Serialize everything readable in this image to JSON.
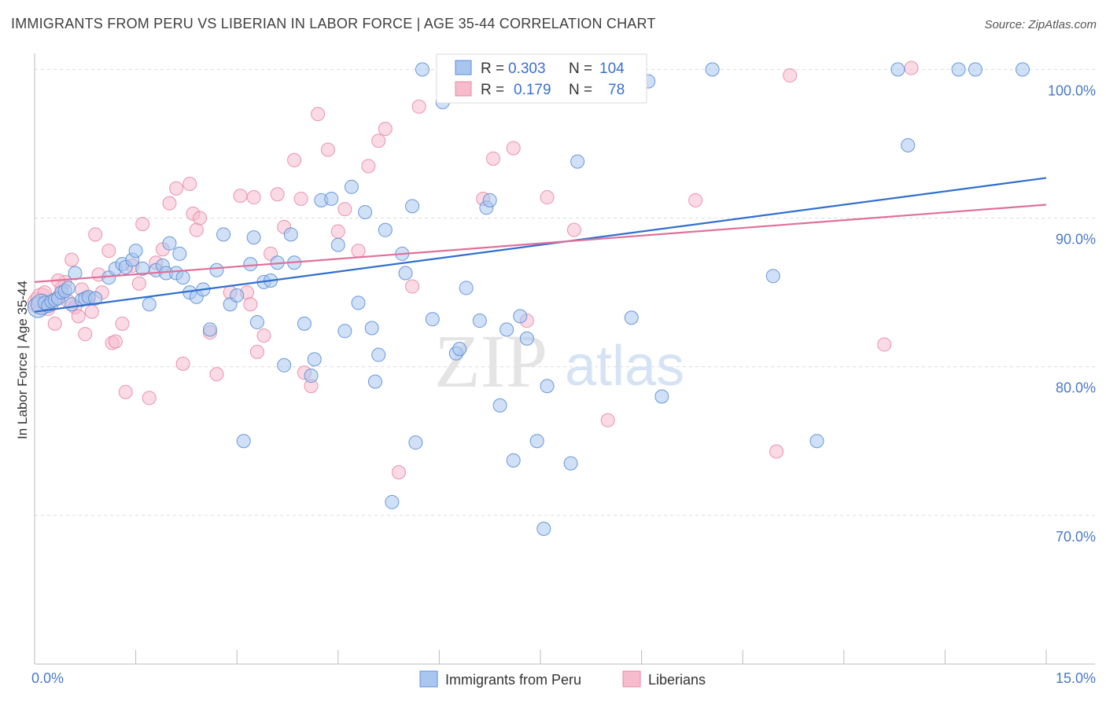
{
  "title": "IMMIGRANTS FROM PERU VS LIBERIAN IN LABOR FORCE | AGE 35-44 CORRELATION CHART",
  "source": "Source: ZipAtlas.com",
  "watermark": {
    "zip": "ZIP",
    "atlas": "atlas"
  },
  "colors": {
    "peru_fill": "#a9c6ef",
    "peru_stroke": "#5b8fd6",
    "peru_line": "#2f6fcf",
    "liberian_fill": "#f6bccd",
    "liberian_stroke": "#e889a6",
    "liberian_line": "#e0709a",
    "grid": "#dcdcdc",
    "tick_text": "#4a79c8"
  },
  "stats_box": {
    "rows": [
      {
        "r_label": "R =",
        "r_value": "0.303",
        "n_label": "N =",
        "n_value": "104"
      },
      {
        "r_label": "R =",
        "r_value": "0.179",
        "n_label": "N =",
        "n_value": "78"
      }
    ]
  },
  "chart_data": {
    "type": "scatter",
    "title": "IMMIGRANTS FROM PERU VS LIBERIAN IN LABOR FORCE | AGE 35-44 CORRELATION CHART",
    "xlabel": "",
    "ylabel": "In Labor Force | Age 35-44",
    "xlim": [
      0,
      15
    ],
    "ylim": [
      60,
      101.5
    ],
    "x_tick_labels": [
      {
        "value": 0,
        "label": "0.0%"
      },
      {
        "value": 15,
        "label": "15.0%"
      }
    ],
    "y_tick_labels": [
      {
        "value": 100,
        "label": "100.0%"
      },
      {
        "value": 90,
        "label": "90.0%"
      },
      {
        "value": 80,
        "label": "80.0%"
      },
      {
        "value": 70,
        "label": "70.0%"
      }
    ],
    "grid": "horizontal dashed",
    "legend_position": "bottom-center",
    "series": [
      {
        "name": "Immigrants from Peru",
        "r": 0.303,
        "n": 104,
        "trend": {
          "x0": 0,
          "y0": 83.7,
          "x1": 15,
          "y1": 92.7
        },
        "points": [
          [
            0.05,
            84.0
          ],
          [
            0.1,
            84.2
          ],
          [
            0.15,
            84.3
          ],
          [
            0.2,
            84.1
          ],
          [
            0.25,
            84.4
          ],
          [
            0.3,
            84.5
          ],
          [
            0.35,
            84.6
          ],
          [
            0.4,
            85.0
          ],
          [
            0.45,
            85.1
          ],
          [
            0.5,
            85.3
          ],
          [
            0.55,
            84.2
          ],
          [
            0.6,
            86.3
          ],
          [
            0.7,
            84.5
          ],
          [
            0.75,
            84.6
          ],
          [
            0.8,
            84.7
          ],
          [
            0.9,
            84.6
          ],
          [
            1.1,
            86.0
          ],
          [
            1.2,
            86.6
          ],
          [
            1.3,
            86.9
          ],
          [
            1.35,
            86.7
          ],
          [
            1.45,
            87.2
          ],
          [
            1.5,
            87.8
          ],
          [
            1.6,
            86.6
          ],
          [
            1.7,
            84.2
          ],
          [
            1.8,
            86.5
          ],
          [
            1.9,
            86.8
          ],
          [
            1.95,
            86.3
          ],
          [
            2.0,
            88.3
          ],
          [
            2.1,
            86.3
          ],
          [
            2.15,
            87.6
          ],
          [
            2.2,
            86.0
          ],
          [
            2.3,
            85.0
          ],
          [
            2.4,
            84.7
          ],
          [
            2.5,
            85.2
          ],
          [
            2.6,
            82.5
          ],
          [
            2.7,
            86.5
          ],
          [
            2.8,
            88.9
          ],
          [
            2.9,
            84.2
          ],
          [
            3.0,
            84.8
          ],
          [
            3.1,
            75.0
          ],
          [
            3.2,
            86.9
          ],
          [
            3.25,
            88.7
          ],
          [
            3.3,
            83.0
          ],
          [
            3.4,
            85.7
          ],
          [
            3.5,
            85.8
          ],
          [
            3.6,
            87.0
          ],
          [
            3.7,
            80.1
          ],
          [
            3.8,
            88.9
          ],
          [
            3.85,
            87.0
          ],
          [
            4.0,
            82.9
          ],
          [
            4.1,
            79.4
          ],
          [
            4.15,
            80.5
          ],
          [
            4.25,
            91.2
          ],
          [
            4.4,
            91.3
          ],
          [
            4.5,
            88.2
          ],
          [
            4.6,
            82.4
          ],
          [
            4.7,
            92.1
          ],
          [
            4.8,
            84.3
          ],
          [
            4.9,
            90.4
          ],
          [
            5.0,
            82.6
          ],
          [
            5.05,
            79.0
          ],
          [
            5.1,
            80.8
          ],
          [
            5.2,
            89.2
          ],
          [
            5.3,
            70.9
          ],
          [
            5.45,
            87.6
          ],
          [
            5.5,
            86.3
          ],
          [
            5.6,
            90.8
          ],
          [
            5.65,
            74.9
          ],
          [
            5.75,
            100.0
          ],
          [
            5.9,
            83.2
          ],
          [
            6.05,
            97.8
          ],
          [
            6.25,
            80.9
          ],
          [
            6.3,
            81.2
          ],
          [
            6.4,
            85.3
          ],
          [
            6.6,
            83.1
          ],
          [
            6.7,
            90.7
          ],
          [
            6.75,
            91.2
          ],
          [
            6.9,
            77.4
          ],
          [
            7.0,
            82.5
          ],
          [
            7.1,
            73.7
          ],
          [
            7.2,
            83.4
          ],
          [
            7.3,
            81.9
          ],
          [
            7.45,
            75.0
          ],
          [
            7.55,
            69.1
          ],
          [
            7.6,
            78.7
          ],
          [
            7.8,
            100.0
          ],
          [
            7.95,
            73.5
          ],
          [
            8.05,
            93.8
          ],
          [
            8.15,
            100.0
          ],
          [
            8.3,
            100.0
          ],
          [
            8.55,
            100.0
          ],
          [
            8.85,
            83.3
          ],
          [
            9.1,
            99.2
          ],
          [
            9.3,
            78.0
          ],
          [
            10.05,
            100.0
          ],
          [
            10.95,
            86.1
          ],
          [
            11.6,
            75.0
          ],
          [
            12.8,
            100.0
          ],
          [
            12.95,
            94.9
          ],
          [
            13.7,
            100.0
          ],
          [
            13.95,
            100.0
          ],
          [
            14.65,
            100.0
          ]
        ]
      },
      {
        "name": "Liberians",
        "r": 0.179,
        "n": 78,
        "trend": {
          "x0": 0,
          "y0": 85.7,
          "x1": 15,
          "y1": 90.9
        },
        "points": [
          [
            0.05,
            84.3
          ],
          [
            0.1,
            84.6
          ],
          [
            0.15,
            85.0
          ],
          [
            0.2,
            83.9
          ],
          [
            0.25,
            84.2
          ],
          [
            0.3,
            82.9
          ],
          [
            0.35,
            84.7
          ],
          [
            0.4,
            85.3
          ],
          [
            0.45,
            85.7
          ],
          [
            0.5,
            84.4
          ],
          [
            0.55,
            87.2
          ],
          [
            0.6,
            84.0
          ],
          [
            0.65,
            83.4
          ],
          [
            0.7,
            85.2
          ],
          [
            0.75,
            82.2
          ],
          [
            0.8,
            84.6
          ],
          [
            0.85,
            83.7
          ],
          [
            0.9,
            88.9
          ],
          [
            0.95,
            86.2
          ],
          [
            1.0,
            85.0
          ],
          [
            1.1,
            87.8
          ],
          [
            1.15,
            81.6
          ],
          [
            1.2,
            81.7
          ],
          [
            1.3,
            82.9
          ],
          [
            1.35,
            78.3
          ],
          [
            1.45,
            86.8
          ],
          [
            1.55,
            85.6
          ],
          [
            1.6,
            89.6
          ],
          [
            1.7,
            77.9
          ],
          [
            1.8,
            87.0
          ],
          [
            1.9,
            87.9
          ],
          [
            2.0,
            91.0
          ],
          [
            2.1,
            92.0
          ],
          [
            2.2,
            80.2
          ],
          [
            2.3,
            92.3
          ],
          [
            2.35,
            90.3
          ],
          [
            2.4,
            89.2
          ],
          [
            2.45,
            90.0
          ],
          [
            2.6,
            82.3
          ],
          [
            2.7,
            79.5
          ],
          [
            2.9,
            85.0
          ],
          [
            3.05,
            91.5
          ],
          [
            3.15,
            85.0
          ],
          [
            3.2,
            84.2
          ],
          [
            3.25,
            91.4
          ],
          [
            3.3,
            81.0
          ],
          [
            3.4,
            82.1
          ],
          [
            3.5,
            87.6
          ],
          [
            3.6,
            91.6
          ],
          [
            3.7,
            89.4
          ],
          [
            3.85,
            93.9
          ],
          [
            3.95,
            91.3
          ],
          [
            4.0,
            79.6
          ],
          [
            4.1,
            78.7
          ],
          [
            4.2,
            97.0
          ],
          [
            4.35,
            94.6
          ],
          [
            4.5,
            89.1
          ],
          [
            4.6,
            90.6
          ],
          [
            4.8,
            87.8
          ],
          [
            4.95,
            93.5
          ],
          [
            5.1,
            95.2
          ],
          [
            5.2,
            96.0
          ],
          [
            5.4,
            72.9
          ],
          [
            5.6,
            85.4
          ],
          [
            5.7,
            97.5
          ],
          [
            6.65,
            91.3
          ],
          [
            6.8,
            94.0
          ],
          [
            7.1,
            94.7
          ],
          [
            7.3,
            83.1
          ],
          [
            7.6,
            91.4
          ],
          [
            8.0,
            89.2
          ],
          [
            8.5,
            76.4
          ],
          [
            9.8,
            91.2
          ],
          [
            11.0,
            74.3
          ],
          [
            11.2,
            99.6
          ],
          [
            12.6,
            81.5
          ],
          [
            13.0,
            100.1
          ],
          [
            0.35,
            85.8
          ]
        ]
      }
    ]
  }
}
